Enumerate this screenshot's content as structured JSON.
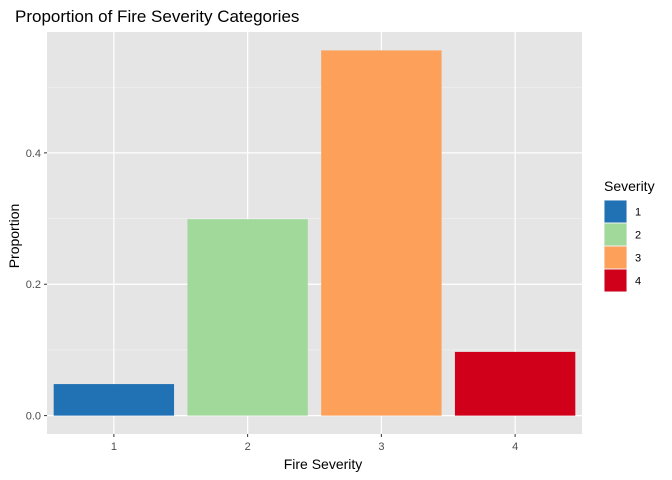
{
  "chart_data": {
    "type": "bar",
    "title": "Proportion of Fire Severity Categories",
    "xlabel": "Fire Severity",
    "ylabel": "Proportion",
    "categories": [
      "1",
      "2",
      "3",
      "4"
    ],
    "values": [
      0.048,
      0.299,
      0.556,
      0.097
    ],
    "colors": [
      "#2171b5",
      "#a1d99b",
      "#fda05a",
      "#d0001a"
    ],
    "ylim": [
      -0.028,
      0.584
    ],
    "yticks": [
      0.0,
      0.2,
      0.4
    ],
    "ytick_labels": [
      "0.0",
      "0.2",
      "0.4"
    ],
    "grid": true,
    "legend": {
      "title": "Severity",
      "position": "right",
      "entries": [
        "1",
        "2",
        "3",
        "4"
      ]
    }
  }
}
